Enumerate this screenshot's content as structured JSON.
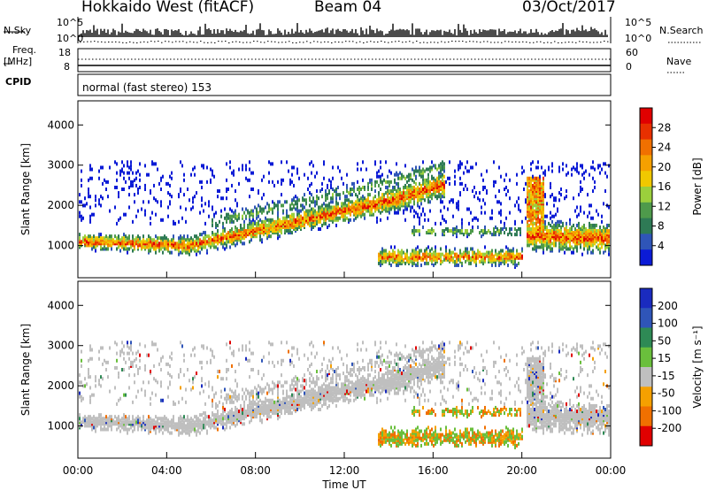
{
  "header": {
    "station": "Hokkaido West (fitACF)",
    "beam": "Beam 04",
    "date": "03/Oct/2017"
  },
  "top_panel": {
    "nsky_label": "N.Sky",
    "nsearch_label": "N.Search",
    "noise_axis": {
      "top": "10^5",
      "bottom": "10^0"
    },
    "freq_label": "Freq.",
    "freq_unit": "[MHz]",
    "freq_axis": {
      "top": "18",
      "bottom": "8"
    },
    "nave_label": "Nave",
    "nave_axis": {
      "top": "60",
      "bottom": "0"
    },
    "cpid_label": "CPID",
    "cpid_text": "normal (fast stereo) 153"
  },
  "x_axis": {
    "ticks": [
      "00:00",
      "04:00",
      "08:00",
      "12:00",
      "16:00",
      "20:00",
      "00:00"
    ],
    "label": "Time UT"
  },
  "chart_data": [
    {
      "type": "heatmap",
      "parameter": "Power",
      "ylabel": "Slant Range [km]",
      "yticks": [
        1000,
        2000,
        3000,
        4000
      ],
      "ylim": [
        200,
        4600
      ],
      "colorbar": {
        "label": "Power [dB]",
        "ticks": [
          4,
          8,
          12,
          16,
          20,
          24,
          28
        ],
        "colors": [
          "#0b1bd6",
          "#2f55b8",
          "#2e7a55",
          "#4e9a4b",
          "#9bcf3c",
          "#f0c800",
          "#f5a000",
          "#f07000",
          "#e83000",
          "#e00000"
        ]
      },
      "scatter_bands": [
        {
          "t_start": 0,
          "t_end": 5,
          "range": [
            900,
            1300
          ],
          "level": "high"
        },
        {
          "t_start": 5,
          "t_end": 9,
          "range": [
            1100,
            1700
          ],
          "level": "high"
        },
        {
          "t_start": 9,
          "t_end": 14,
          "range": [
            1700,
            2400
          ],
          "level": "high"
        },
        {
          "t_start": 14,
          "t_end": 16.5,
          "range": [
            2200,
            2700
          ],
          "level": "medium"
        },
        {
          "t_start": 13.5,
          "t_end": 20,
          "range": [
            500,
            900
          ],
          "level": "high"
        },
        {
          "t_start": 15,
          "t_end": 19,
          "range": [
            1200,
            1500
          ],
          "level": "low"
        },
        {
          "t_start": 20.3,
          "t_end": 24,
          "range": [
            900,
            2600
          ],
          "level": "high"
        }
      ]
    },
    {
      "type": "heatmap",
      "parameter": "Velocity",
      "ylabel": "Slant Range [km]",
      "yticks": [
        1000,
        2000,
        3000,
        4000
      ],
      "ylim": [
        200,
        4600
      ],
      "colorbar": {
        "label": "Velocity [m s⁻¹]",
        "ticks": [
          200,
          100,
          50,
          15,
          -15,
          -50,
          -100,
          -200
        ],
        "colors": [
          "#1a2bbf",
          "#2f55b8",
          "#2e8a55",
          "#6abf3c",
          "#bfbfbf",
          "#f5a000",
          "#f07000",
          "#e00000"
        ]
      }
    }
  ]
}
